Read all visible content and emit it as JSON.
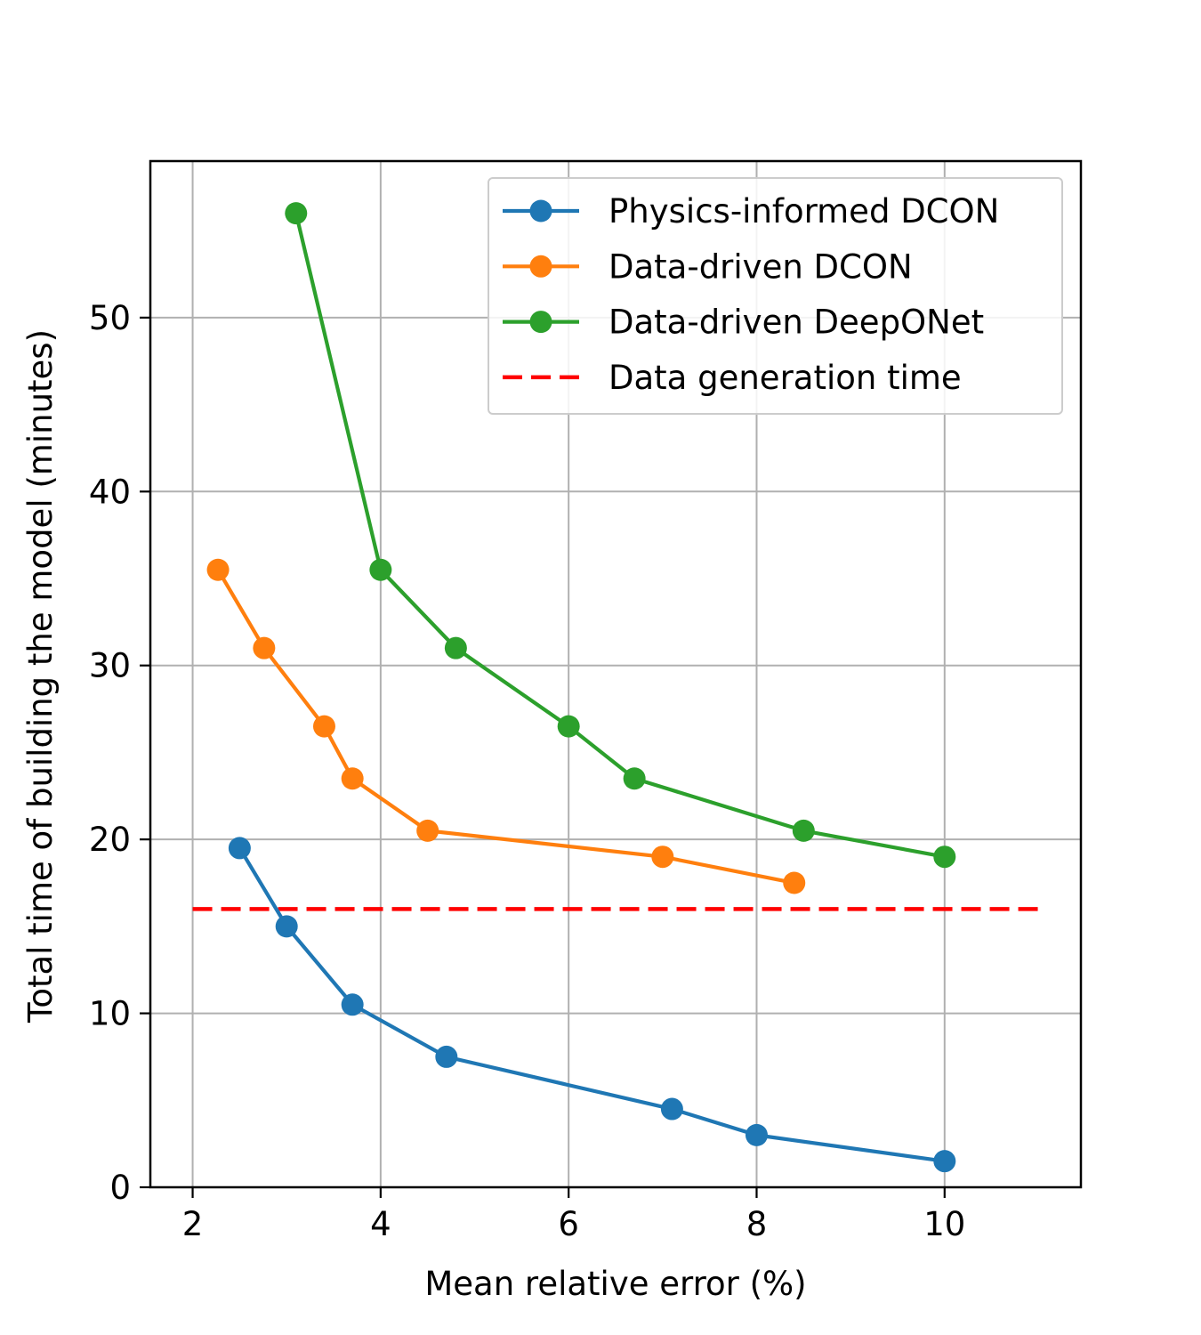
{
  "chart_data": {
    "type": "line",
    "xlabel": "Mean relative error (%)",
    "ylabel": "Total time of building the model (minutes)",
    "xlim": [
      1.55,
      11.45
    ],
    "ylim": [
      0,
      59
    ],
    "xticks": [
      2,
      4,
      6,
      8,
      10
    ],
    "yticks": [
      0,
      10,
      20,
      30,
      40,
      50
    ],
    "grid": true,
    "legend_position": "top-right",
    "series": [
      {
        "name": "Physics-informed DCON",
        "color": "#1f77b4",
        "marker": "circle",
        "x": [
          2.5,
          3.0,
          3.7,
          4.7,
          7.1,
          8.0,
          10.0
        ],
        "y": [
          19.5,
          15.0,
          10.5,
          7.5,
          4.5,
          3.0,
          1.5
        ]
      },
      {
        "name": "Data-driven DCON",
        "color": "#ff7f0e",
        "marker": "circle",
        "x": [
          2.27,
          2.76,
          3.4,
          3.7,
          4.5,
          7.0,
          8.4
        ],
        "y": [
          35.5,
          31.0,
          26.5,
          23.5,
          20.5,
          19.0,
          17.5
        ]
      },
      {
        "name": "Data-driven DeepONet",
        "color": "#2ca02c",
        "marker": "circle",
        "x": [
          3.1,
          4.0,
          4.8,
          6.0,
          6.7,
          8.5,
          10.0
        ],
        "y": [
          56.0,
          35.5,
          31.0,
          26.5,
          23.5,
          20.5,
          19.0
        ]
      }
    ],
    "reference_lines": [
      {
        "name": "Data generation time",
        "color": "#ff0000",
        "style": "dashed",
        "y": 16,
        "x_range": [
          2,
          11
        ]
      }
    ]
  }
}
